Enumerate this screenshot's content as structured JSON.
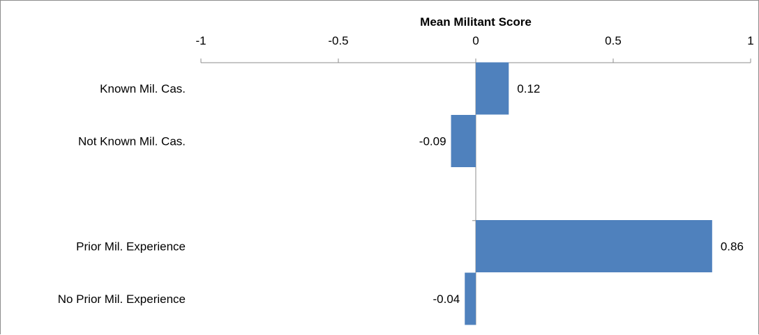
{
  "chart_data": {
    "type": "bar",
    "orientation": "horizontal",
    "title": "",
    "xlabel": "Mean Militant Score",
    "ylabel": "",
    "xlim": [
      -1,
      1
    ],
    "x_ticks": [
      -1,
      -0.5,
      0,
      0.5,
      1
    ],
    "x_tick_labels": [
      "-1",
      "-0.5",
      "0",
      "0.5",
      "1"
    ],
    "axis_position": "top",
    "grid": false,
    "legend": "none",
    "bar_color": "#4f81bd",
    "categories": [
      "Known Mil. Cas.",
      "Not Known Mil. Cas.",
      "",
      "Prior Mil. Experience",
      "No Prior Mil. Experience"
    ],
    "values": [
      0.12,
      -0.09,
      null,
      0.86,
      -0.04
    ],
    "data_labels": [
      "0.12",
      "-0.09",
      "",
      "0.86",
      "-0.04"
    ]
  }
}
